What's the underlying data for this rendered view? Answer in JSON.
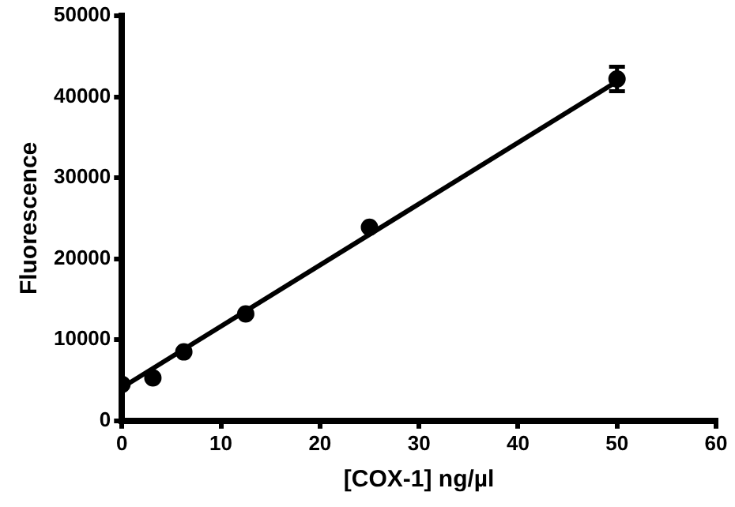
{
  "chart_data": {
    "type": "scatter",
    "xlabel": "[COX-1] ng/µl",
    "ylabel": "Fluorescence",
    "xlim": [
      0,
      60
    ],
    "xticks": [
      0,
      10,
      20,
      30,
      40,
      50,
      60
    ],
    "ylim": [
      0,
      50000
    ],
    "yticks": [
      0,
      10000,
      20000,
      30000,
      40000,
      50000
    ],
    "grid": false,
    "legend": false,
    "series": [
      {
        "color": "#000000",
        "marker": "circle",
        "x": [
          0,
          3.125,
          6.25,
          12.5,
          25,
          50
        ],
        "values": [
          4500,
          5300,
          8500,
          13200,
          23900,
          42200
        ],
        "errors": [
          null,
          null,
          null,
          null,
          null,
          1500
        ]
      },
      {
        "type": "line",
        "color": "#000000",
        "line_style": "solid",
        "x": [
          0,
          50
        ],
        "values": [
          4100,
          41900
        ]
      }
    ]
  }
}
